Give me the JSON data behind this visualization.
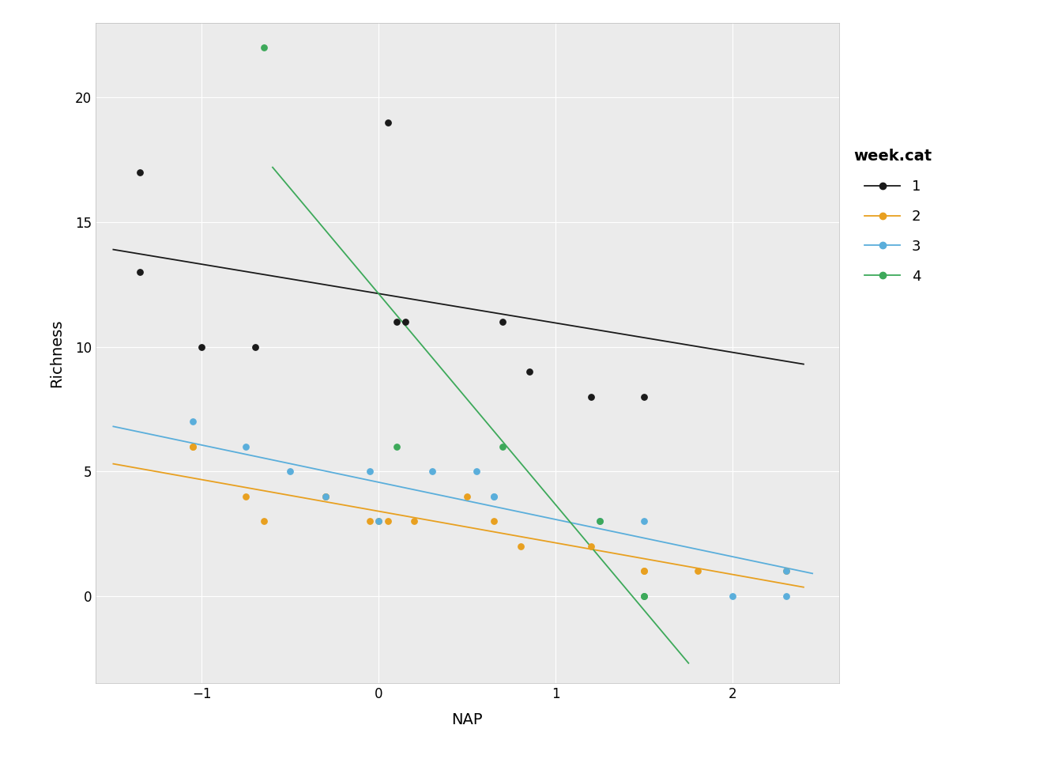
{
  "title": "",
  "xlabel": "NAP",
  "ylabel": "Richness",
  "legend_title": "week.cat",
  "background_color": "#ffffff",
  "panel_background": "#EBEBEB",
  "grid_color": "#ffffff",
  "xlim": [
    -1.6,
    2.6
  ],
  "ylim": [
    -3.5,
    23
  ],
  "xticks": [
    -1,
    0,
    1,
    2
  ],
  "yticks": [
    0,
    5,
    10,
    15,
    20
  ],
  "series": {
    "1": {
      "color": "#1a1a1a",
      "points": [
        [
          -1.35,
          17
        ],
        [
          -1.35,
          13
        ],
        [
          -1.0,
          10
        ],
        [
          -0.7,
          10
        ],
        [
          0.05,
          19
        ],
        [
          0.1,
          11
        ],
        [
          0.15,
          11
        ],
        [
          0.7,
          11
        ],
        [
          0.85,
          9
        ],
        [
          1.2,
          8
        ],
        [
          1.5,
          8
        ]
      ],
      "line": {
        "x0": -1.5,
        "y0": 13.9,
        "x1": 2.4,
        "y1": 9.3
      }
    },
    "2": {
      "color": "#E8A020",
      "points": [
        [
          -1.05,
          6
        ],
        [
          -1.05,
          6
        ],
        [
          -0.75,
          4
        ],
        [
          -0.65,
          3
        ],
        [
          -0.3,
          4
        ],
        [
          -0.3,
          4
        ],
        [
          -0.05,
          3
        ],
        [
          0.0,
          3
        ],
        [
          0.05,
          3
        ],
        [
          0.2,
          3
        ],
        [
          0.5,
          4
        ],
        [
          0.65,
          3
        ],
        [
          0.8,
          2
        ],
        [
          1.2,
          2
        ],
        [
          1.5,
          1
        ],
        [
          1.5,
          1
        ],
        [
          1.8,
          1
        ],
        [
          2.3,
          1
        ]
      ],
      "line": {
        "x0": -1.5,
        "y0": 5.3,
        "x1": 2.4,
        "y1": 0.35
      }
    },
    "3": {
      "color": "#5AAEDB",
      "points": [
        [
          -1.05,
          7
        ],
        [
          -0.75,
          6
        ],
        [
          -0.5,
          5
        ],
        [
          -0.3,
          4
        ],
        [
          -0.05,
          5
        ],
        [
          0.0,
          3
        ],
        [
          0.3,
          5
        ],
        [
          0.55,
          5
        ],
        [
          0.65,
          4
        ],
        [
          0.65,
          4
        ],
        [
          1.25,
          3
        ],
        [
          1.5,
          3
        ],
        [
          2.0,
          0
        ],
        [
          2.3,
          1
        ],
        [
          2.3,
          0
        ]
      ],
      "line": {
        "x0": -1.5,
        "y0": 6.8,
        "x1": 2.45,
        "y1": 0.9
      }
    },
    "4": {
      "color": "#3DA95A",
      "points": [
        [
          -0.65,
          22
        ],
        [
          0.1,
          6
        ],
        [
          0.7,
          6
        ],
        [
          1.25,
          3
        ],
        [
          1.5,
          0
        ],
        [
          1.5,
          0
        ]
      ],
      "line": {
        "x0": -0.6,
        "y0": 17.2,
        "x1": 1.75,
        "y1": -2.7
      }
    }
  }
}
